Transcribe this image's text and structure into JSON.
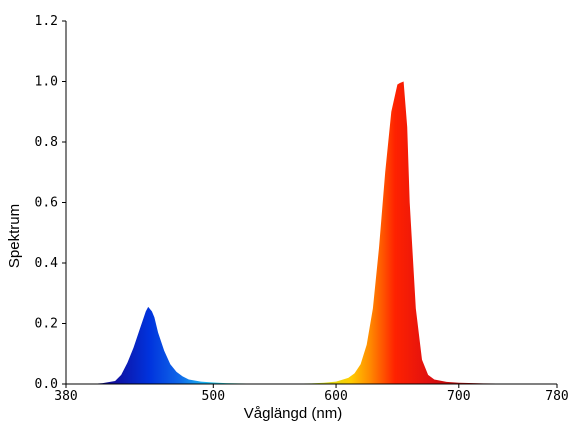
{
  "chart_data": {
    "type": "area",
    "title": "",
    "xlabel": "Våglängd (nm)",
    "ylabel": "Spektrum",
    "xlim": [
      380,
      780
    ],
    "ylim": [
      0,
      1.2
    ],
    "x_ticks": [
      380,
      500,
      600,
      700,
      780
    ],
    "x_tick_labels": [
      "380",
      "500",
      "600",
      "700",
      "780"
    ],
    "y_ticks": [
      0,
      0.2,
      0.4,
      0.6,
      0.8,
      1.0,
      1.2
    ],
    "y_tick_labels": [
      "0.0",
      "0.2",
      "0.4",
      "0.6",
      "0.8",
      "1.0",
      "1.2"
    ],
    "grid": false,
    "series": [
      {
        "x": [
          380,
          400,
          410,
          420,
          425,
          430,
          435,
          440,
          445,
          447,
          450,
          452,
          455,
          460,
          465,
          470,
          475,
          480,
          490,
          500,
          510,
          520,
          540,
          560,
          580,
          590,
          600,
          610,
          615,
          620,
          625,
          630,
          635,
          640,
          645,
          650,
          652,
          655,
          658,
          660,
          665,
          670,
          675,
          680,
          690,
          700,
          720,
          750,
          780
        ],
        "y": [
          0,
          0,
          0.003,
          0.01,
          0.03,
          0.07,
          0.12,
          0.18,
          0.24,
          0.255,
          0.24,
          0.22,
          0.17,
          0.11,
          0.065,
          0.04,
          0.025,
          0.015,
          0.008,
          0.005,
          0.003,
          0.002,
          0.001,
          0.001,
          0.002,
          0.004,
          0.008,
          0.02,
          0.035,
          0.065,
          0.13,
          0.25,
          0.45,
          0.7,
          0.9,
          0.99,
          0.995,
          1.0,
          0.85,
          0.6,
          0.25,
          0.08,
          0.03,
          0.015,
          0.007,
          0.004,
          0.002,
          0.001,
          0
        ]
      }
    ]
  }
}
